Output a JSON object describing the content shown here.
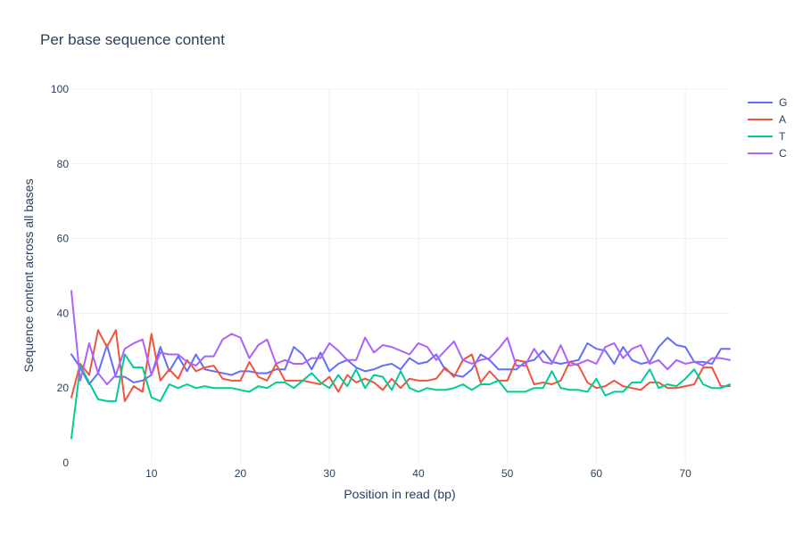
{
  "chart_data": {
    "type": "line",
    "title": "Per base sequence content",
    "xlabel": "Position in read (bp)",
    "ylabel": "Sequence content across all bases",
    "xlim": [
      1,
      75
    ],
    "ylim": [
      0,
      100
    ],
    "x_ticks": [
      10,
      20,
      30,
      40,
      50,
      60,
      70
    ],
    "y_ticks": [
      0,
      20,
      40,
      60,
      80,
      100
    ],
    "grid": true,
    "legend_position": "top-right",
    "x": [
      1,
      2,
      3,
      4,
      5,
      6,
      7,
      8,
      9,
      10,
      11,
      12,
      13,
      14,
      15,
      16,
      17,
      18,
      19,
      20,
      21,
      22,
      23,
      24,
      25,
      26,
      27,
      28,
      29,
      30,
      31,
      32,
      33,
      34,
      35,
      36,
      37,
      38,
      39,
      40,
      41,
      42,
      43,
      44,
      45,
      46,
      47,
      48,
      49,
      50,
      51,
      52,
      53,
      54,
      55,
      56,
      57,
      58,
      59,
      60,
      61,
      62,
      63,
      64,
      65,
      66,
      67,
      68,
      69,
      70,
      71,
      72,
      73,
      74,
      75
    ],
    "series": [
      {
        "name": "G",
        "color": "#636efa",
        "values": [
          29,
          25.5,
          21,
          24,
          31.5,
          23,
          23,
          21.5,
          22,
          23.5,
          31,
          24.5,
          28.5,
          24.5,
          29,
          25,
          24.5,
          24,
          23.5,
          24.5,
          24.5,
          24,
          24,
          25,
          25,
          31,
          29,
          25,
          29.5,
          24.5,
          26.5,
          27.5,
          25.5,
          24.5,
          25,
          26,
          26.5,
          25,
          28,
          26.5,
          27,
          29,
          25,
          23.5,
          23,
          25,
          29,
          27.5,
          25,
          25,
          25,
          27,
          27.5,
          30,
          27,
          26.5,
          27,
          27.5,
          32,
          30.5,
          30,
          26.5,
          31,
          27.5,
          26.5,
          27,
          31,
          33.5,
          31.5,
          31,
          27,
          27,
          26.5,
          30.5,
          30.5
        ]
      },
      {
        "name": "A",
        "color": "#ef553b",
        "values": [
          17.5,
          26.5,
          23.5,
          35.5,
          31,
          35.5,
          16.5,
          20.5,
          19,
          34.5,
          22,
          25,
          22.5,
          27.5,
          24.5,
          25.5,
          26,
          22.5,
          22,
          22,
          27,
          23,
          22,
          26.5,
          22,
          22,
          22,
          21.5,
          21,
          23,
          19,
          23.5,
          21.5,
          22.5,
          21.5,
          19.5,
          22.5,
          20,
          22.5,
          22,
          22,
          22.5,
          25.5,
          23,
          27.5,
          29,
          21.5,
          24.5,
          22,
          22,
          27.5,
          27,
          21,
          21.5,
          21,
          22,
          27,
          26,
          21.5,
          20,
          20.5,
          22,
          20.5,
          20,
          19.5,
          21.5,
          21.5,
          20,
          20,
          20.5,
          21,
          25.5,
          25.5,
          20.5,
          20.5
        ]
      },
      {
        "name": "T",
        "color": "#00cc96",
        "values": [
          6.5,
          26,
          21.5,
          17,
          16.5,
          16.5,
          29,
          25.5,
          25.5,
          17.5,
          16.5,
          21,
          20,
          21,
          20,
          20.5,
          20,
          20,
          20,
          19.5,
          19,
          20.5,
          20,
          21.5,
          21.5,
          20,
          22,
          24,
          21.5,
          20,
          23.5,
          20.5,
          25,
          20,
          23.5,
          23,
          19.5,
          24.5,
          20,
          19,
          20,
          19.5,
          19.5,
          20,
          21,
          19.5,
          21,
          21,
          22,
          19,
          19,
          19,
          20,
          20,
          24.5,
          20,
          19.5,
          19.5,
          19,
          22.5,
          18,
          19,
          19,
          21.5,
          21.5,
          25,
          20,
          21,
          20.5,
          22.5,
          25,
          21,
          20,
          20,
          21
        ]
      },
      {
        "name": "C",
        "color": "#ab63fa",
        "values": [
          46,
          22,
          32,
          24,
          21,
          23.5,
          30.5,
          32,
          33,
          23.5,
          29.5,
          29,
          29,
          27,
          26,
          28.5,
          28.5,
          33,
          34.5,
          33.5,
          28,
          31.5,
          33,
          26.5,
          27.5,
          26.5,
          26.5,
          28,
          28,
          32,
          30,
          27.5,
          27.5,
          33.5,
          29.5,
          31.5,
          31,
          30,
          29,
          32,
          31,
          27.5,
          30,
          32.5,
          27.5,
          26.5,
          27.5,
          28,
          30.5,
          33.5,
          26,
          26,
          30.5,
          27,
          26.5,
          31.5,
          26,
          26.5,
          27.5,
          26.5,
          31,
          32,
          28,
          30.5,
          31.5,
          26.5,
          27.5,
          25,
          27.5,
          26.5,
          27,
          26,
          28,
          28,
          27.5
        ]
      }
    ]
  }
}
